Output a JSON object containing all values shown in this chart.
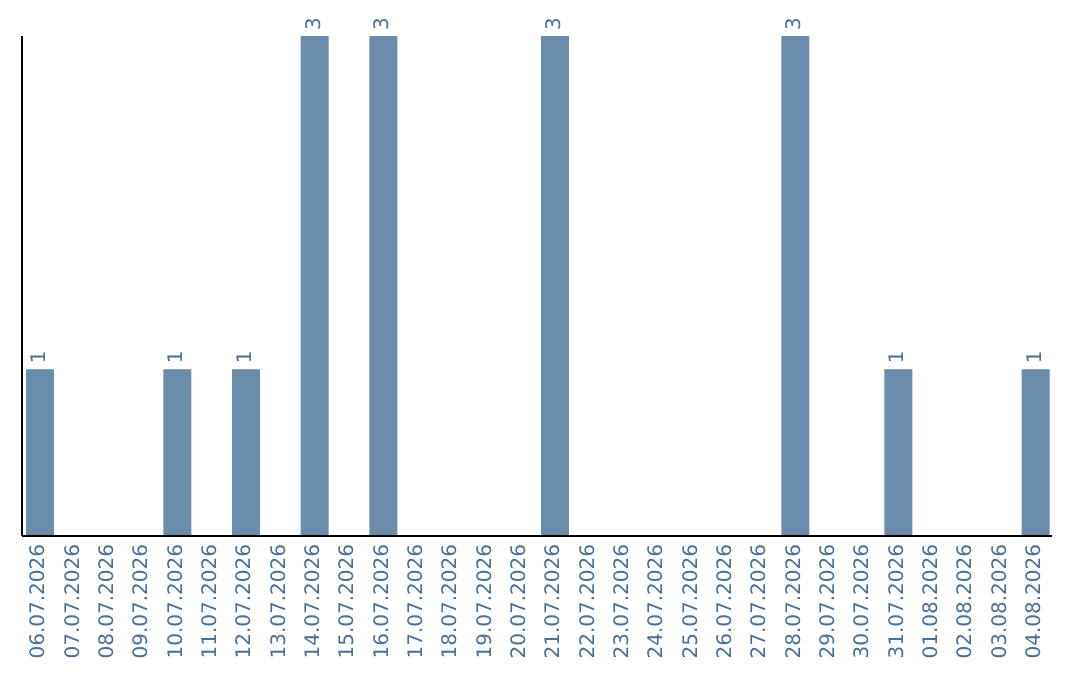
{
  "chart_data": {
    "type": "bar",
    "categories": [
      "06.07.2026",
      "07.07.2026",
      "08.07.2026",
      "09.07.2026",
      "10.07.2026",
      "11.07.2026",
      "12.07.2026",
      "13.07.2026",
      "14.07.2026",
      "15.07.2026",
      "16.07.2026",
      "17.07.2026",
      "18.07.2026",
      "19.07.2026",
      "20.07.2026",
      "21.07.2026",
      "22.07.2026",
      "23.07.2026",
      "24.07.2026",
      "25.07.2026",
      "26.07.2026",
      "27.07.2026",
      "28.07.2026",
      "29.07.2026",
      "30.07.2026",
      "31.07.2026",
      "01.08.2026",
      "02.08.2026",
      "03.08.2026",
      "04.08.2026"
    ],
    "values": [
      1,
      0,
      0,
      0,
      1,
      0,
      1,
      0,
      3,
      0,
      3,
      0,
      0,
      0,
      0,
      3,
      0,
      0,
      0,
      0,
      0,
      0,
      3,
      0,
      0,
      1,
      0,
      0,
      0,
      1
    ],
    "value_labels": [
      "1",
      null,
      null,
      null,
      "1",
      null,
      "1",
      null,
      "3",
      null,
      "3",
      null,
      null,
      null,
      null,
      "3",
      null,
      null,
      null,
      null,
      null,
      null,
      "3",
      null,
      null,
      "1",
      null,
      null,
      null,
      "1"
    ],
    "color": "#6b8cab",
    "tick_labels": "x"
  }
}
